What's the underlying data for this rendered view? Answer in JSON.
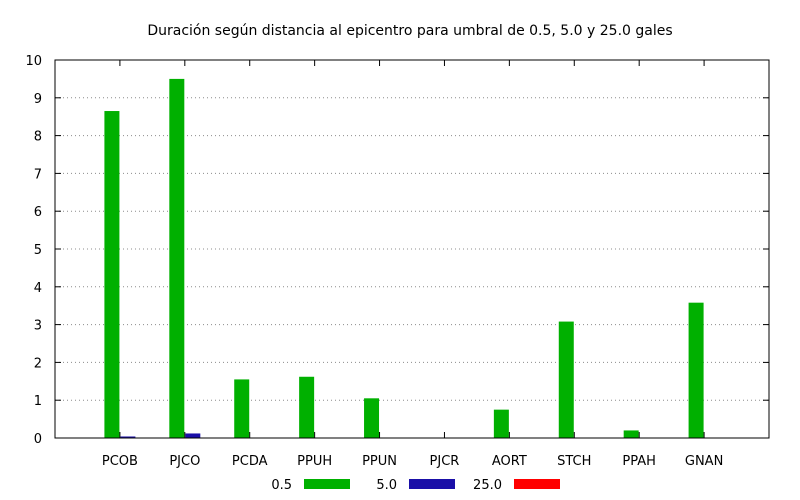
{
  "chart_data": {
    "type": "bar",
    "title": "Duración según distancia al epicentro para umbral de 0.5, 5.0 y 25.0 gales",
    "xlabel": "",
    "ylabel": "",
    "categories": [
      "PCOB",
      "PJCO",
      "PCDA",
      "PPUH",
      "PPUN",
      "PJCR",
      "AORT",
      "STCH",
      "PPAH",
      "GNAN"
    ],
    "series": [
      {
        "name": "0.5",
        "color": "#00b000",
        "values": [
          8.65,
          9.5,
          1.55,
          1.62,
          1.05,
          0,
          0.75,
          3.08,
          0.2,
          3.58
        ]
      },
      {
        "name": "5.0",
        "color": "#1a0fa8",
        "values": [
          0.04,
          0.12,
          0,
          0,
          0,
          0,
          0,
          0,
          0,
          0
        ]
      },
      {
        "name": "25.0",
        "color": "#ff0000",
        "values": [
          0,
          0,
          0,
          0,
          0,
          0,
          0,
          0,
          0,
          0
        ]
      }
    ],
    "ylim": [
      0,
      10
    ],
    "yticks": [
      "0",
      "1",
      "2",
      "3",
      "4",
      "5",
      "6",
      "7",
      "8",
      "9",
      "10"
    ],
    "grid": "horizontal dotted",
    "legend_position": "bottom"
  }
}
